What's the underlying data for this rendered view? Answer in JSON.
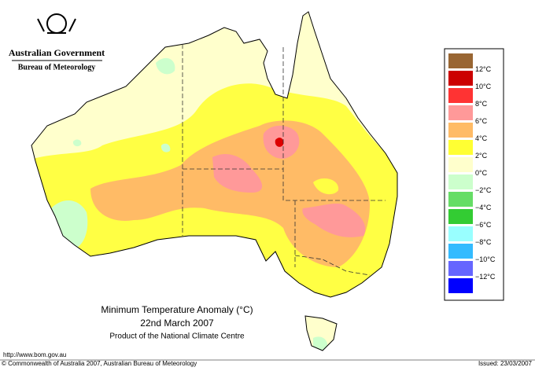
{
  "header": {
    "government": "Australian Government",
    "agency": "Bureau of Meteorology"
  },
  "title": {
    "line1": "Minimum Temperature Anomaly (°C)",
    "line2": "22nd March 2007",
    "line3": "Product of the National Climate Centre"
  },
  "legend": {
    "colors": [
      "#996633",
      "#cc0000",
      "#ff3333",
      "#ff9999",
      "#ffbb66",
      "#ffff33",
      "#ffffcc",
      "#ccffcc",
      "#66dd66",
      "#33cc33",
      "#99ffff",
      "#33bbff",
      "#6666ff",
      "#0000ff"
    ],
    "labels": [
      "12°C",
      "10°C",
      "8°C",
      "6°C",
      "4°C",
      "2°C",
      "0°C",
      "−2°C",
      "−4°C",
      "−6°C",
      "−8°C",
      "−10°C",
      "−12°C"
    ]
  },
  "footer": {
    "url": "http://www.bom.gov.au",
    "copyright": "© Commonwealth of Australia 2007, Australian Bureau of Meteorology",
    "issued": "Issued: 23/03/2007"
  }
}
